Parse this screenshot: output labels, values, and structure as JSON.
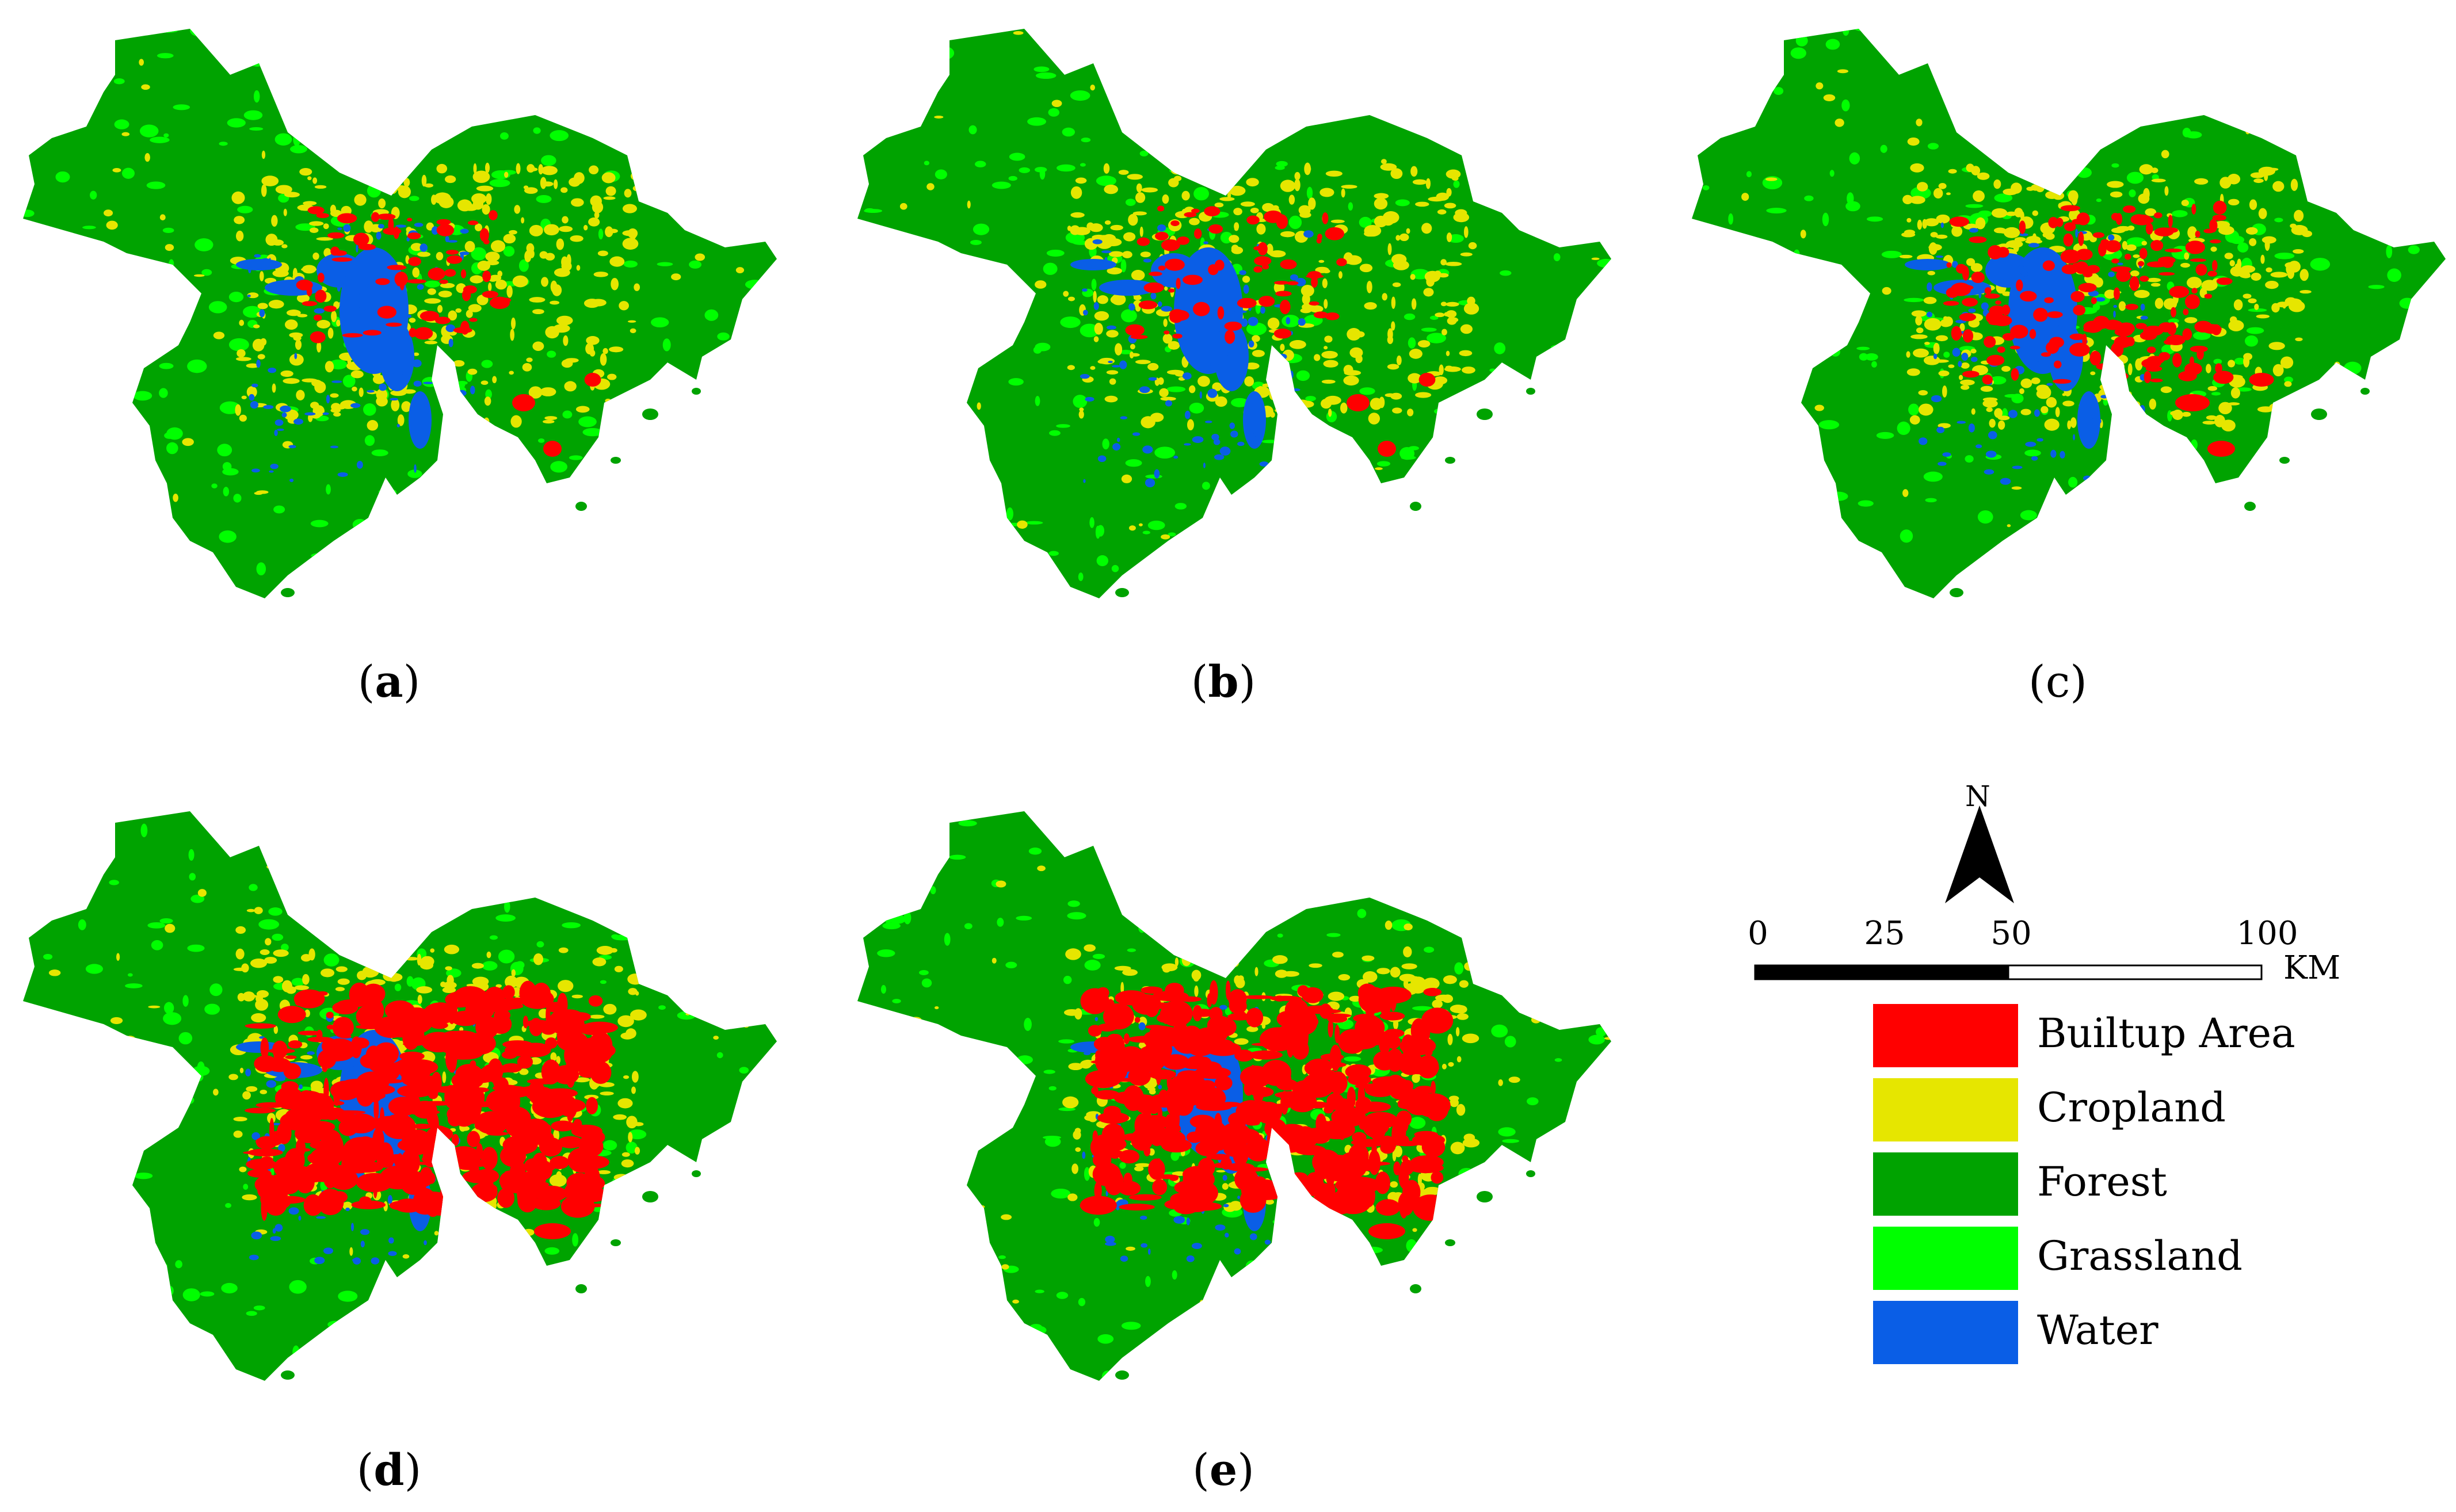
{
  "panels": [
    {
      "id": "a",
      "label": "a",
      "builtup_level": 1
    },
    {
      "id": "b",
      "label": "b",
      "builtup_level": 1
    },
    {
      "id": "c",
      "label": "c",
      "builtup_level": 2
    },
    {
      "id": "d",
      "label": "d",
      "builtup_level": 3
    },
    {
      "id": "e",
      "label": "e",
      "builtup_level": 3
    }
  ],
  "north": {
    "letter": "N"
  },
  "scale": {
    "ticks": [
      "0",
      "25",
      "50",
      "100"
    ],
    "unit": "KM"
  },
  "legend": {
    "items": [
      {
        "label": "Builtup Area",
        "color": "#ff0000"
      },
      {
        "label": "Cropland",
        "color": "#e6e600"
      },
      {
        "label": "Forest",
        "color": "#00a300"
      },
      {
        "label": "Grassland",
        "color": "#00ff00"
      },
      {
        "label": "Water",
        "color": "#0a5ee6"
      }
    ]
  }
}
